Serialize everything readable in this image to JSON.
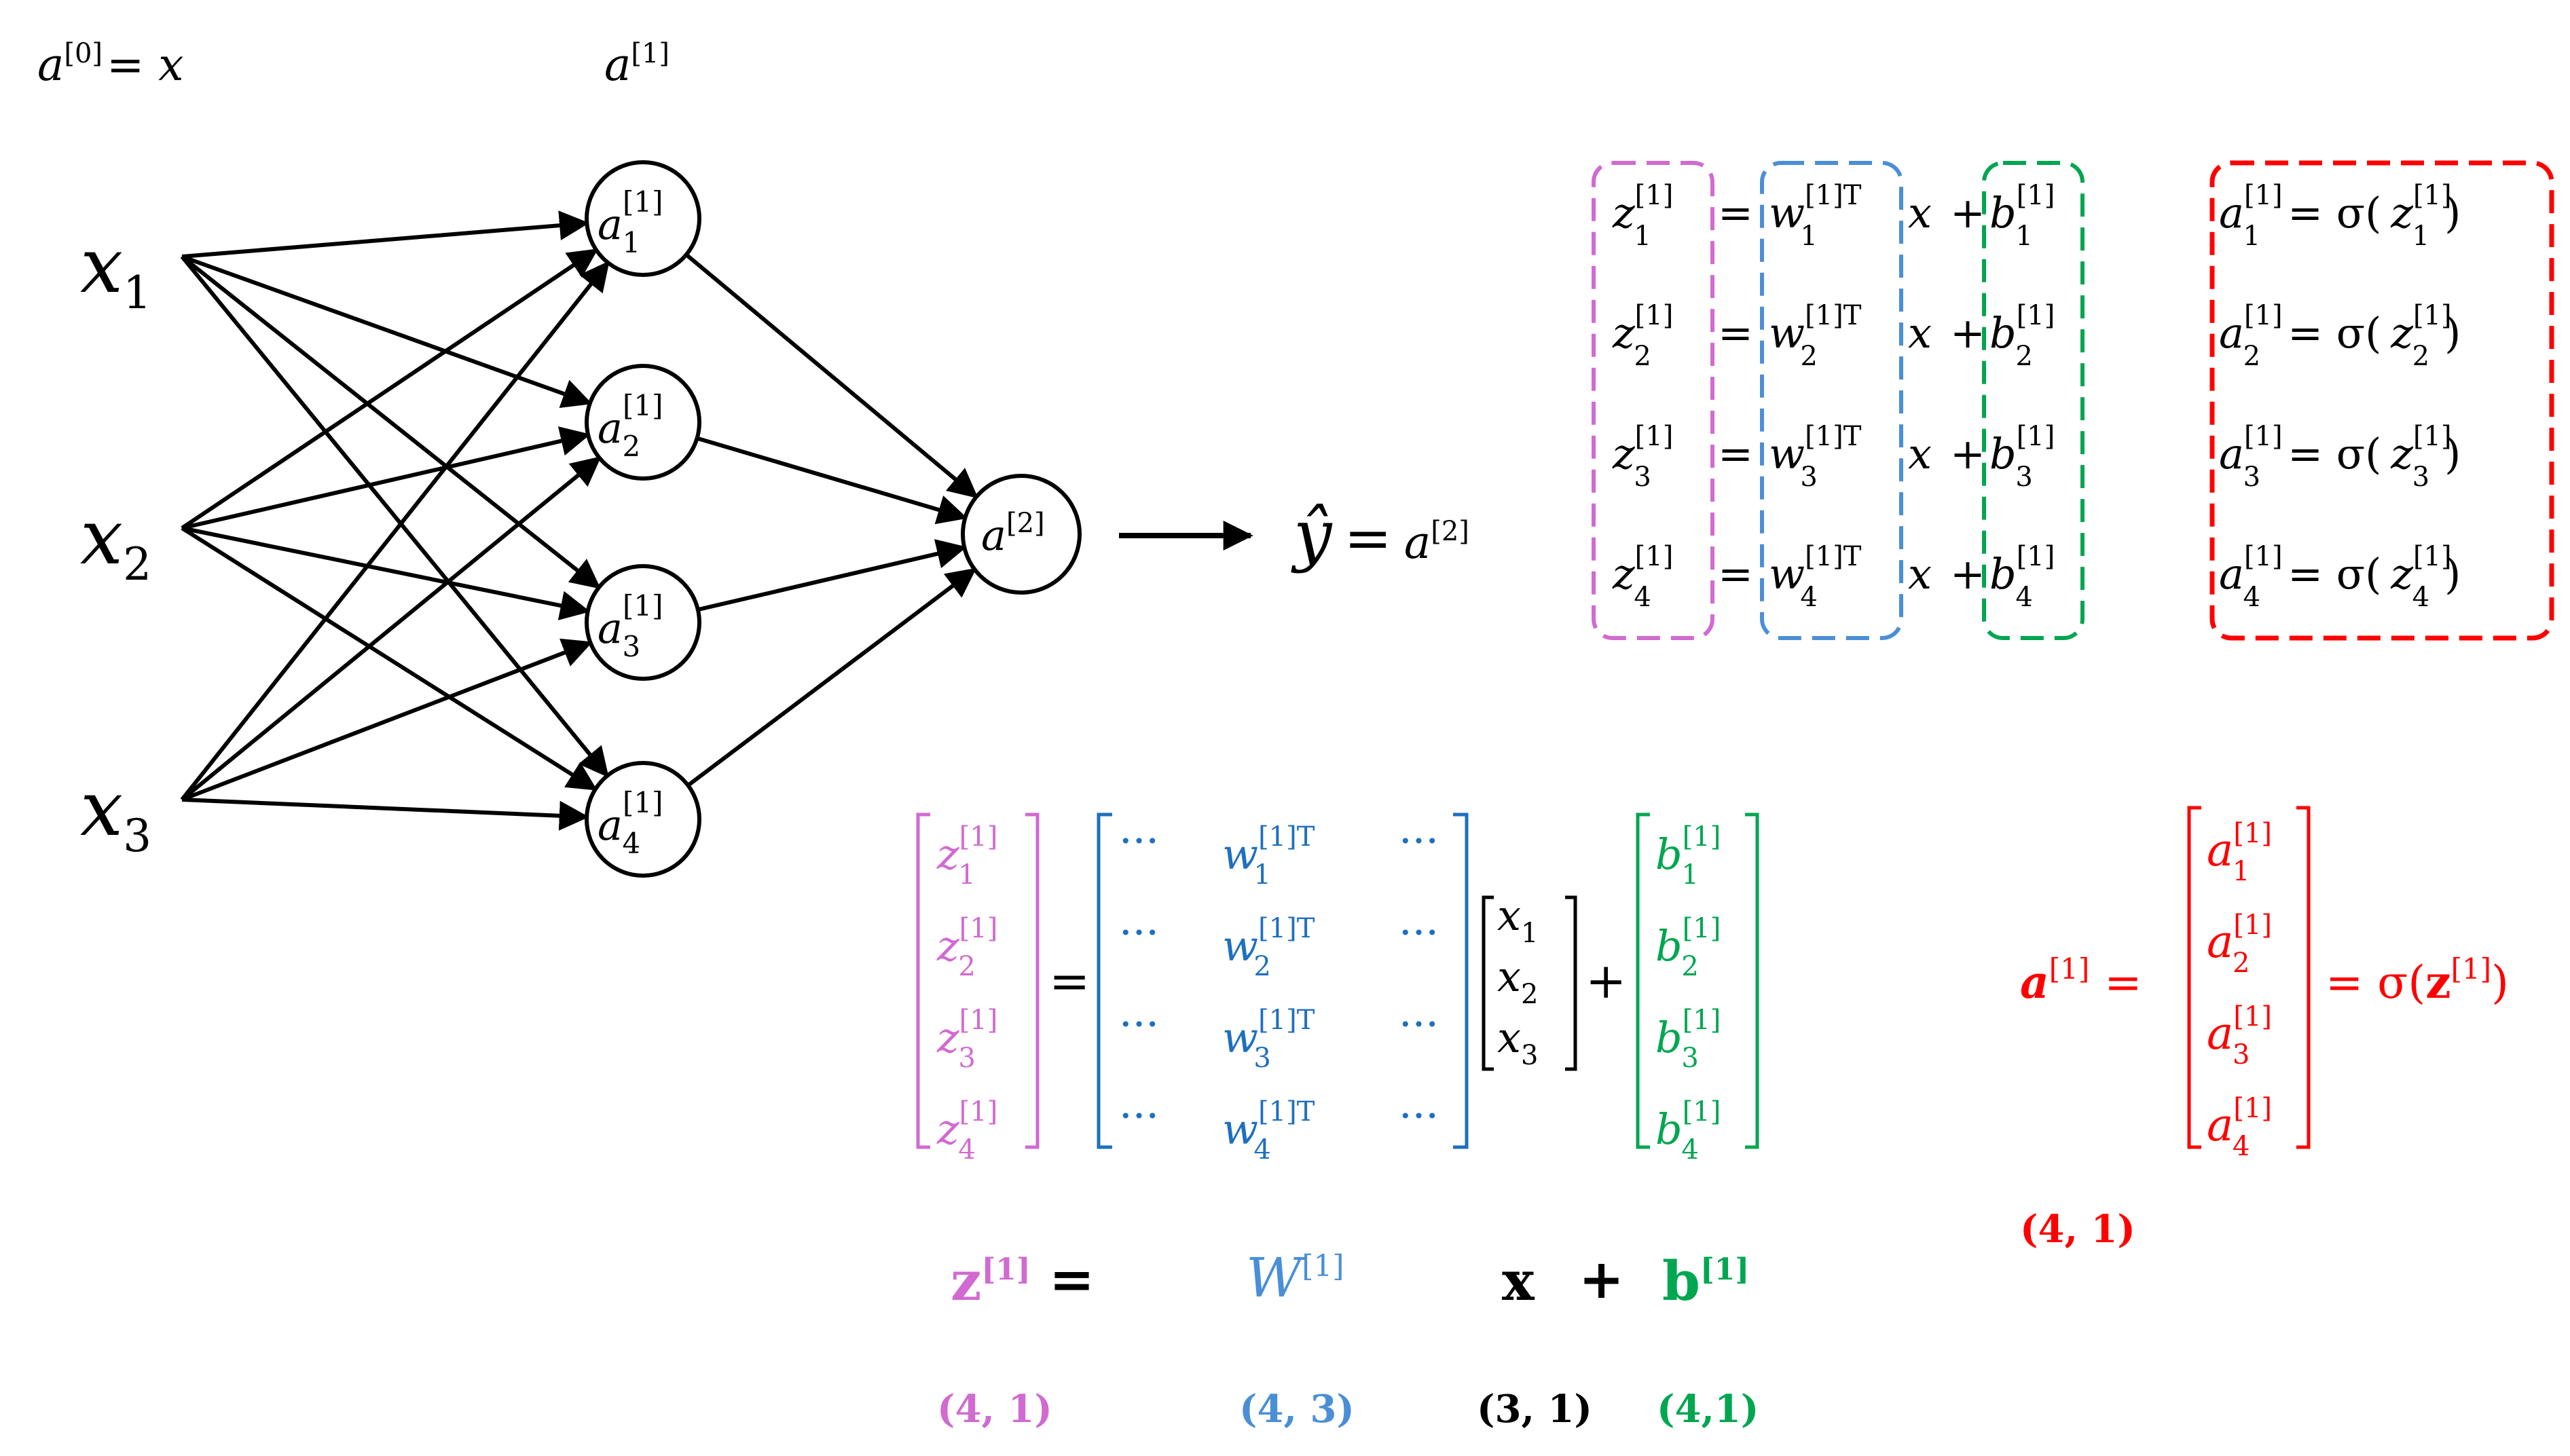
{
  "colors": {
    "ink": "#000000",
    "z": "#d16ad1",
    "w": "#4a8fd6",
    "w_matrix": "#1f6fbf",
    "b": "#00a650",
    "a": "#ff0000",
    "x": "#000000"
  },
  "header": {
    "a0_lhs": "a",
    "a0_sup": "[0]",
    "a0_rhs": "= x",
    "a1_label": "a",
    "a1_sup": "[1]"
  },
  "network": {
    "inputs": [
      {
        "base": "x",
        "sub": "1"
      },
      {
        "base": "x",
        "sub": "2"
      },
      {
        "base": "x",
        "sub": "3"
      }
    ],
    "hidden": [
      {
        "base": "a",
        "sup": "[1]",
        "sub": "1"
      },
      {
        "base": "a",
        "sup": "[1]",
        "sub": "2"
      },
      {
        "base": "a",
        "sup": "[1]",
        "sub": "3"
      },
      {
        "base": "a",
        "sup": "[1]",
        "sub": "4"
      }
    ],
    "output": {
      "base": "a",
      "sup": "[2]"
    },
    "yhat": {
      "base": "ŷ",
      "eq": "=",
      "rhs": "a",
      "rhs_sup": "[2]"
    }
  },
  "equations": {
    "rows": [
      {
        "z": "z",
        "z_sub": "1",
        "sup": "[1]",
        "eq": "=",
        "w": "w",
        "w_sub": "1",
        "w_sup": "[1]T",
        "x": "x",
        "plus": "+",
        "b": "b",
        "b_sub": "1"
      },
      {
        "z": "z",
        "z_sub": "2",
        "sup": "[1]",
        "eq": "=",
        "w": "w",
        "w_sub": "2",
        "w_sup": "[1]T",
        "x": "x",
        "plus": "+",
        "b": "b",
        "b_sub": "2"
      },
      {
        "z": "z",
        "z_sub": "3",
        "sup": "[1]",
        "eq": "=",
        "w": "w",
        "w_sub": "3",
        "w_sup": "[1]T",
        "x": "x",
        "plus": "+",
        "b": "b",
        "b_sub": "3"
      },
      {
        "z": "z",
        "z_sub": "4",
        "sup": "[1]",
        "eq": "=",
        "w": "w",
        "w_sub": "4",
        "w_sup": "[1]T",
        "x": "x",
        "plus": "+",
        "b": "b",
        "b_sub": "4"
      }
    ],
    "activations": [
      {
        "a": "a",
        "sub": "1",
        "sup": "[1]",
        "eq": "= σ(",
        "z": "z",
        "close": ")"
      },
      {
        "a": "a",
        "sub": "2",
        "sup": "[1]",
        "eq": "= σ(",
        "z": "z",
        "close": ")"
      },
      {
        "a": "a",
        "sub": "3",
        "sup": "[1]",
        "eq": "= σ(",
        "z": "z",
        "close": ")"
      },
      {
        "a": "a",
        "sub": "4",
        "sup": "[1]",
        "eq": "= σ(",
        "z": "z",
        "close": ")"
      }
    ]
  },
  "matrix": {
    "z_entries": [
      {
        "base": "z",
        "sup": "[1]",
        "sub": "1"
      },
      {
        "base": "z",
        "sup": "[1]",
        "sub": "2"
      },
      {
        "base": "z",
        "sup": "[1]",
        "sub": "3"
      },
      {
        "base": "z",
        "sup": "[1]",
        "sub": "4"
      }
    ],
    "eq": "=",
    "w_rows": [
      {
        "dots_l": "···",
        "base": "w",
        "sup": "[1]T",
        "sub": "1",
        "dots_r": "···"
      },
      {
        "dots_l": "···",
        "base": "w",
        "sup": "[1]T",
        "sub": "2",
        "dots_r": "···"
      },
      {
        "dots_l": "···",
        "base": "w",
        "sup": "[1]T",
        "sub": "3",
        "dots_r": "···"
      },
      {
        "dots_l": "···",
        "base": "w",
        "sup": "[1]T",
        "sub": "4",
        "dots_r": "···"
      }
    ],
    "x_entries": [
      {
        "base": "x",
        "sub": "1"
      },
      {
        "base": "x",
        "sub": "2"
      },
      {
        "base": "x",
        "sub": "3"
      }
    ],
    "plus": "+",
    "b_entries": [
      {
        "base": "b",
        "sup": "[1]",
        "sub": "1"
      },
      {
        "base": "b",
        "sup": "[1]",
        "sub": "2"
      },
      {
        "base": "b",
        "sup": "[1]",
        "sub": "3"
      },
      {
        "base": "b",
        "sup": "[1]",
        "sub": "4"
      }
    ]
  },
  "a_vector": {
    "lhs": "a",
    "lhs_sup": "[1]",
    "eq": "=",
    "entries": [
      {
        "base": "a",
        "sup": "[1]",
        "sub": "1"
      },
      {
        "base": "a",
        "sup": "[1]",
        "sub": "2"
      },
      {
        "base": "a",
        "sup": "[1]",
        "sub": "3"
      },
      {
        "base": "a",
        "sup": "[1]",
        "sub": "4"
      }
    ],
    "rhs": "= σ(",
    "rhs_z": "z",
    "rhs_sup": "[1]",
    "rhs_close": ")",
    "shape": "(4, 1)"
  },
  "vector_form": {
    "z": "z",
    "z_sup": "[1]",
    "eq": "=",
    "W": "W",
    "W_sup": "[1]",
    "x": "x",
    "plus": "+",
    "b": "b",
    "b_sup": "[1]"
  },
  "shapes": {
    "z": "(4, 1)",
    "W": "(4, 3)",
    "x": "(3, 1)",
    "b": "(4,1)"
  }
}
